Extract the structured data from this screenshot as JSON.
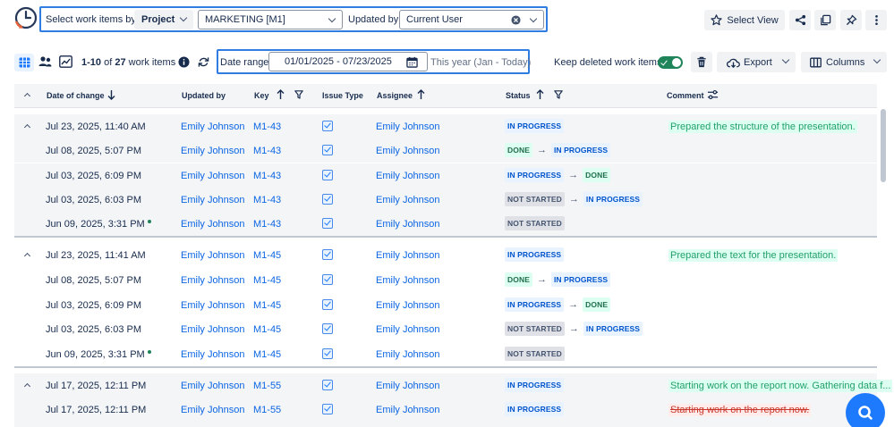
{
  "toolbar": {
    "select_by_label": "Select work items by:",
    "select_by_value": "Project",
    "project_value": "MARKETING [M1]",
    "updated_by_label": "Updated by:",
    "updated_by_value": "Current User",
    "select_view_label": "Select View"
  },
  "subbar": {
    "range_prefix": "1-10",
    "range_of": "of",
    "total": "27",
    "items_label": "work items",
    "date_range_label": "Date range:",
    "date_range_value": "01/01/2025 - 07/23/2025",
    "date_range_hint": "This year (Jan - Today)",
    "keep_deleted_label": "Keep deleted work items",
    "export_label": "Export",
    "columns_label": "Columns"
  },
  "table": {
    "headers": {
      "date": "Date of change",
      "updated_by": "Updated by",
      "key": "Key",
      "issue_type": "Issue Type",
      "assignee": "Assignee",
      "status": "Status",
      "comment": "Comment"
    },
    "rows": [
      {
        "date": "Jul 23, 2025, 11:40 AM",
        "user": "Emily Johnson",
        "key": "M1-43",
        "assignee": "Emily Johnson",
        "status_from": "",
        "status_to": "IN PROGRESS",
        "comment": "Prepared the structure of the presentation."
      },
      {
        "date": "Jul 08, 2025, 5:07 PM",
        "user": "Emily Johnson",
        "key": "M1-43",
        "assignee": "Emily Johnson",
        "status_from": "DONE",
        "status_to": "IN PROGRESS",
        "comment": ""
      },
      {
        "date": "Jul 03, 2025, 6:09 PM",
        "user": "Emily Johnson",
        "key": "M1-43",
        "assignee": "Emily Johnson",
        "status_from": "IN PROGRESS",
        "status_to": "DONE",
        "comment": ""
      },
      {
        "date": "Jul 03, 2025, 6:03 PM",
        "user": "Emily Johnson",
        "key": "M1-43",
        "assignee": "Emily Johnson",
        "status_from": "NOT STARTED",
        "status_to": "IN PROGRESS",
        "comment": ""
      },
      {
        "date": "Jun 09, 2025, 3:31 PM",
        "user": "Emily Johnson",
        "key": "M1-43",
        "assignee": "Emily Johnson",
        "status_from": "",
        "status_to": "NOT STARTED",
        "comment": ""
      },
      {
        "date": "Jul 23, 2025, 11:41 AM",
        "user": "Emily Johnson",
        "key": "M1-45",
        "assignee": "Emily Johnson",
        "status_from": "",
        "status_to": "IN PROGRESS",
        "comment": "Prepared the text for the presentation."
      },
      {
        "date": "Jul 08, 2025, 5:07 PM",
        "user": "Emily Johnson",
        "key": "M1-45",
        "assignee": "Emily Johnson",
        "status_from": "DONE",
        "status_to": "IN PROGRESS",
        "comment": ""
      },
      {
        "date": "Jul 03, 2025, 6:09 PM",
        "user": "Emily Johnson",
        "key": "M1-45",
        "assignee": "Emily Johnson",
        "status_from": "IN PROGRESS",
        "status_to": "DONE",
        "comment": ""
      },
      {
        "date": "Jul 03, 2025, 6:03 PM",
        "user": "Emily Johnson",
        "key": "M1-45",
        "assignee": "Emily Johnson",
        "status_from": "NOT STARTED",
        "status_to": "IN PROGRESS",
        "comment": ""
      },
      {
        "date": "Jun 09, 2025, 3:31 PM",
        "user": "Emily Johnson",
        "key": "M1-45",
        "assignee": "Emily Johnson",
        "status_from": "",
        "status_to": "NOT STARTED",
        "comment": ""
      },
      {
        "date": "Jul 17, 2025, 12:11 PM",
        "user": "Emily Johnson",
        "key": "M1-55",
        "assignee": "Emily Johnson",
        "status_from": "",
        "status_to": "IN PROGRESS",
        "comment": "Starting work on the report now. Gathering data f..."
      },
      {
        "date": "Jul 17, 2025, 12:11 PM",
        "user": "Emily Johnson",
        "key": "M1-55",
        "assignee": "Emily Johnson",
        "status_from": "",
        "status_to": "IN PROGRESS",
        "comment": "Starting work on the report now."
      }
    ]
  },
  "colors": {
    "accent": "#2f7de1",
    "link": "#0c66e4",
    "comment_green": "#22a06b",
    "deleted_red": "#c9372c"
  },
  "icons": [
    "timer-logo-icon",
    "grid-view-icon",
    "users-icon",
    "chart-icon",
    "info-icon",
    "refresh-icon",
    "calendar-icon",
    "trash-icon",
    "cloud-download-icon",
    "columns-icon",
    "star-icon",
    "share-icon",
    "copy-icon",
    "pin-icon",
    "more-icon",
    "sort-arrow-icon",
    "filter-icon",
    "sliders-icon",
    "search-fab-icon"
  ]
}
